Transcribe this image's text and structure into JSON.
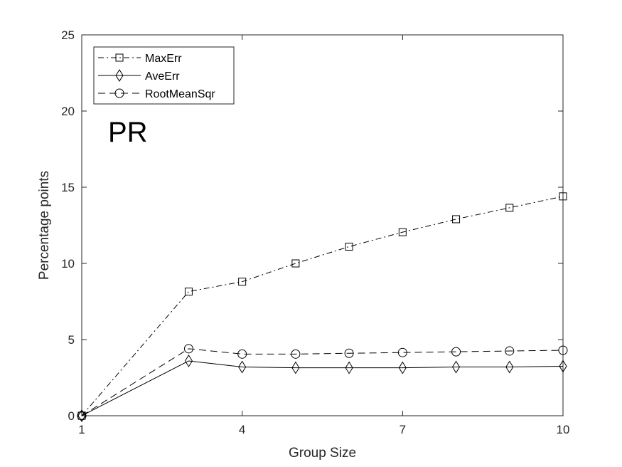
{
  "chart_data": {
    "type": "line",
    "xlabel": "Group Size",
    "ylabel": "Percentage points",
    "annotation": "PR",
    "xlim": [
      1,
      10
    ],
    "ylim": [
      0,
      25
    ],
    "xticks": [
      1,
      4,
      7,
      10
    ],
    "yticks": [
      0,
      5,
      10,
      15,
      20,
      25
    ],
    "grid": false,
    "legend_position": "top-left",
    "x": [
      1,
      3,
      4,
      5,
      6,
      7,
      8,
      9,
      10
    ],
    "series": [
      {
        "name": "MaxErr",
        "marker": "square",
        "linestyle": "dashdot",
        "values": [
          0,
          8.15,
          8.8,
          10.0,
          11.1,
          12.05,
          12.9,
          13.65,
          14.4
        ]
      },
      {
        "name": "AveErr",
        "marker": "diamond",
        "linestyle": "solid",
        "values": [
          0,
          3.6,
          3.2,
          3.15,
          3.15,
          3.15,
          3.2,
          3.2,
          3.25
        ]
      },
      {
        "name": "RootMeanSqr",
        "marker": "circle",
        "linestyle": "dashed",
        "values": [
          0,
          4.4,
          4.05,
          4.05,
          4.1,
          4.15,
          4.2,
          4.25,
          4.3
        ]
      }
    ],
    "colors": {
      "line": "#000000",
      "axis": "#262626"
    }
  }
}
